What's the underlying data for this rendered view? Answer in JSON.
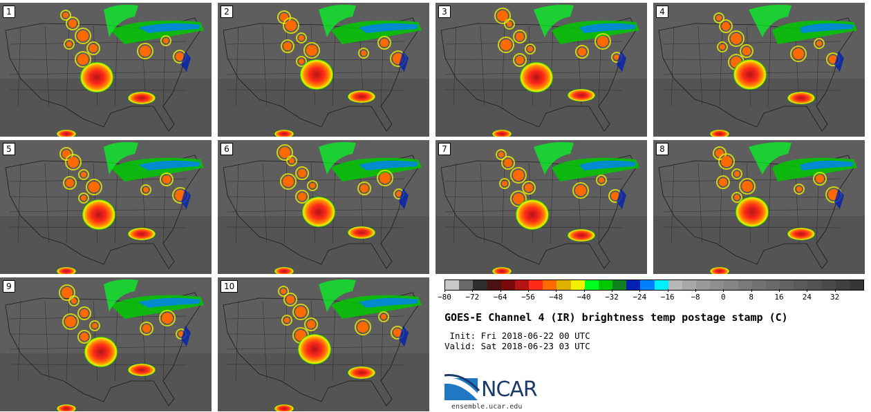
{
  "panels": [
    {
      "label": "1"
    },
    {
      "label": "2"
    },
    {
      "label": "3"
    },
    {
      "label": "4"
    },
    {
      "label": "5"
    },
    {
      "label": "6"
    },
    {
      "label": "7"
    },
    {
      "label": "8"
    },
    {
      "label": "9"
    },
    {
      "label": "10"
    }
  ],
  "colorbar": {
    "tick_labels": [
      "−80",
      "−72",
      "−64",
      "−56",
      "−48",
      "−40",
      "−32",
      "−24",
      "−16",
      "−8",
      "0",
      "8",
      "16",
      "24",
      "32"
    ],
    "min": -80,
    "max": 40,
    "colors": [
      "#c8c8c8",
      "#6a6a6a",
      "#2e2e2e",
      "#4a1212",
      "#7a0a0a",
      "#b41414",
      "#ff2a1a",
      "#ff6a00",
      "#e0b000",
      "#f0f000",
      "#00ff20",
      "#00c800",
      "#108020",
      "#0020b0",
      "#0080ff",
      "#00f0ff",
      "#b8b8b8",
      "#a8a8a8",
      "#9a9a9a",
      "#8e8e8e",
      "#848484",
      "#7a7a7a",
      "#727272",
      "#6a6a6a",
      "#626262",
      "#5a5a5a",
      "#525252",
      "#4a4a4a",
      "#404040",
      "#363636"
    ]
  },
  "title": "GOES-E Channel 4 (IR) brightness temp postage stamp (C)",
  "init": " Init: Fri 2018-06-22 00 UTC",
  "valid": "Valid: Sat 2018-06-23 03 UTC",
  "logo": {
    "text": "NCAR",
    "url_text": "ensemble.ucar.edu"
  }
}
